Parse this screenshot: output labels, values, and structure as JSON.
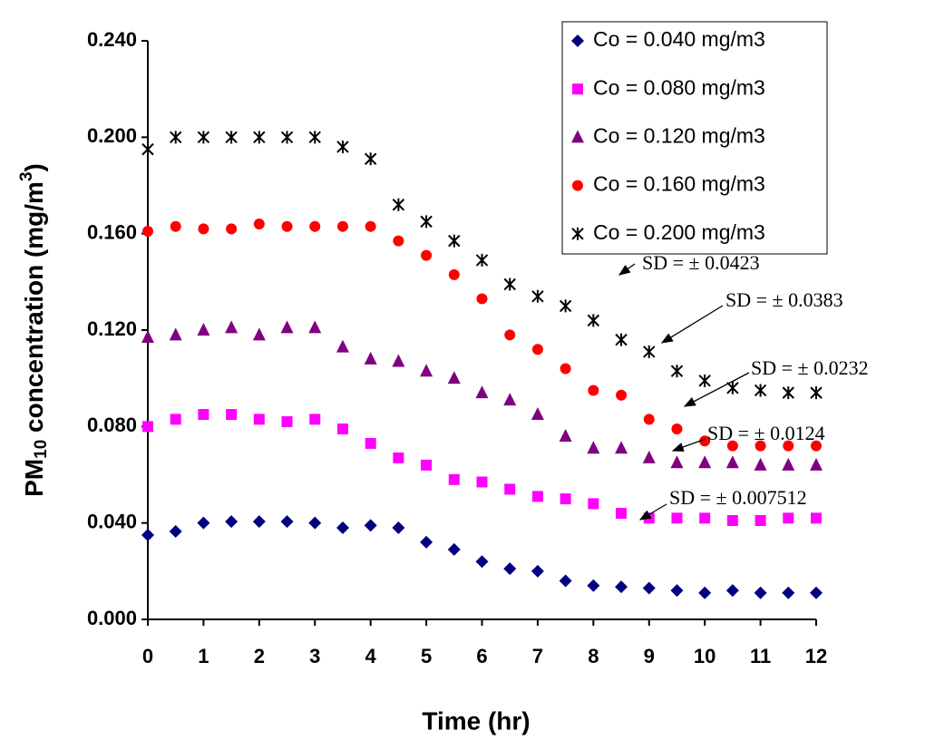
{
  "chart_data": {
    "type": "scatter",
    "x_label": "Time (hr)",
    "y_label": {
      "prefix": "PM",
      "sub": "10",
      "mid": " concentration (mg/m",
      "sup": "3",
      "suffix": ")"
    },
    "x": [
      0,
      0.5,
      1,
      1.5,
      2,
      2.5,
      3,
      3.5,
      4,
      4.5,
      5,
      5.5,
      6,
      6.5,
      7,
      7.5,
      8,
      8.5,
      9,
      9.5,
      10,
      10.5,
      11,
      11.5,
      12
    ],
    "xlim": [
      0,
      12
    ],
    "xticks": [
      0,
      1,
      2,
      3,
      4,
      5,
      6,
      7,
      8,
      9,
      10,
      11,
      12
    ],
    "ylim": [
      0,
      0.24
    ],
    "yticks": [
      {
        "value": 0,
        "label": "0.000"
      },
      {
        "value": 0.04,
        "label": "0.040"
      },
      {
        "value": 0.08,
        "label": "0.080"
      },
      {
        "value": 0.12,
        "label": "0.120"
      },
      {
        "value": 0.16,
        "label": "0.160"
      },
      {
        "value": 0.2,
        "label": "0.200"
      },
      {
        "value": 0.24,
        "label": "0.240"
      }
    ],
    "legend": "top-right",
    "series": [
      {
        "name": "Co = 0.040 mg/m3",
        "color": "#000080",
        "marker": "diamond",
        "values": [
          0.035,
          0.0365,
          0.04,
          0.0406,
          0.0406,
          0.0406,
          0.04,
          0.038,
          0.039,
          0.038,
          0.032,
          0.029,
          0.024,
          0.021,
          0.02,
          0.016,
          0.014,
          0.0135,
          0.013,
          0.012,
          0.011,
          0.012,
          0.011,
          0.011,
          0.011
        ]
      },
      {
        "name": "Co = 0.080 mg/m3",
        "color": "#ff00ff",
        "marker": "square",
        "values": [
          0.08,
          0.083,
          0.085,
          0.085,
          0.083,
          0.082,
          0.083,
          0.079,
          0.073,
          0.067,
          0.064,
          0.058,
          0.057,
          0.054,
          0.051,
          0.05,
          0.048,
          0.044,
          0.042,
          0.042,
          0.042,
          0.041,
          0.041,
          0.042,
          0.042
        ]
      },
      {
        "name": "Co = 0.120 mg/m3",
        "color": "#800080",
        "marker": "triangle",
        "values": [
          0.117,
          0.118,
          0.12,
          0.121,
          0.118,
          0.121,
          0.121,
          0.113,
          0.108,
          0.107,
          0.103,
          0.1,
          0.094,
          0.091,
          0.085,
          0.076,
          0.071,
          0.071,
          0.067,
          0.065,
          0.065,
          0.065,
          0.064,
          0.064,
          0.064
        ]
      },
      {
        "name": "Co = 0.160 mg/m3",
        "color": "#ff0000",
        "marker": "circle",
        "values": [
          0.161,
          0.163,
          0.162,
          0.162,
          0.164,
          0.163,
          0.163,
          0.163,
          0.163,
          0.157,
          0.151,
          0.143,
          0.133,
          0.118,
          0.112,
          0.104,
          0.095,
          0.093,
          0.083,
          0.079,
          0.074,
          0.072,
          0.072,
          0.072,
          0.072
        ]
      },
      {
        "name": "Co = 0.200 mg/m3",
        "color": "#000000",
        "marker": "star",
        "values": [
          0.195,
          0.2,
          0.2,
          0.2,
          0.2,
          0.2,
          0.2,
          0.196,
          0.191,
          0.172,
          0.165,
          0.157,
          0.149,
          0.139,
          0.134,
          0.13,
          0.124,
          0.116,
          0.111,
          0.103,
          0.099,
          0.096,
          0.095,
          0.094,
          0.094
        ]
      }
    ],
    "annotations": [
      "SD = ± 0.0423",
      "SD = ± 0.0383",
      "SD = ± 0.0232",
      "SD = ± 0.0124",
      "SD = ± 0.007512"
    ]
  }
}
